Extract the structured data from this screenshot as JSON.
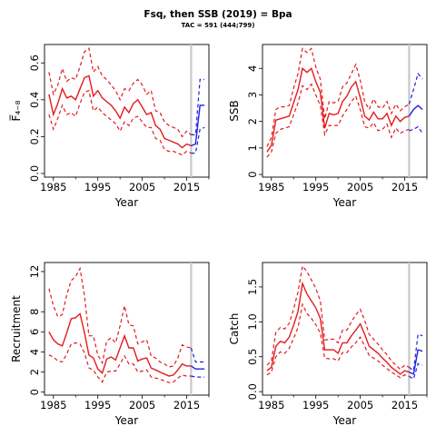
{
  "title": "Fsq, then SSB (2019) = Bpa",
  "subtitle": "TAC = 591 (444;799)",
  "colors": {
    "history": "#e41a1c",
    "projection": "#1f1fe0",
    "divider": "#c8c8c8"
  },
  "chart_data": [
    {
      "type": "line",
      "ylabel": "F̅₄₋₈",
      "xlabel": "Year",
      "xlim": [
        1983,
        2020
      ],
      "ylim": [
        -0.02,
        0.7
      ],
      "xticks": [
        1985,
        1995,
        2005,
        2015
      ],
      "yticks": [
        0.0,
        0.2,
        0.4,
        0.6
      ],
      "divider_year": 2016,
      "x": [
        1984,
        1985,
        1986,
        1987,
        1988,
        1989,
        1990,
        1991,
        1992,
        1993,
        1994,
        1995,
        1996,
        1997,
        1998,
        1999,
        2000,
        2001,
        2002,
        2003,
        2004,
        2005,
        2006,
        2007,
        2008,
        2009,
        2010,
        2011,
        2012,
        2013,
        2014,
        2015,
        2016
      ],
      "median": [
        0.43,
        0.32,
        0.38,
        0.46,
        0.41,
        0.42,
        0.4,
        0.46,
        0.52,
        0.53,
        0.42,
        0.45,
        0.41,
        0.39,
        0.37,
        0.34,
        0.3,
        0.36,
        0.33,
        0.38,
        0.4,
        0.36,
        0.32,
        0.33,
        0.26,
        0.24,
        0.19,
        0.18,
        0.17,
        0.16,
        0.14,
        0.16,
        0.15
      ],
      "lower": [
        0.32,
        0.24,
        0.3,
        0.37,
        0.32,
        0.33,
        0.31,
        0.38,
        0.44,
        0.45,
        0.34,
        0.36,
        0.33,
        0.31,
        0.29,
        0.27,
        0.23,
        0.28,
        0.26,
        0.3,
        0.31,
        0.28,
        0.25,
        0.25,
        0.19,
        0.18,
        0.13,
        0.12,
        0.12,
        0.11,
        0.1,
        0.12,
        0.11
      ],
      "upper": [
        0.55,
        0.43,
        0.48,
        0.57,
        0.5,
        0.52,
        0.51,
        0.58,
        0.66,
        0.68,
        0.55,
        0.58,
        0.53,
        0.51,
        0.48,
        0.45,
        0.4,
        0.46,
        0.45,
        0.49,
        0.51,
        0.48,
        0.43,
        0.45,
        0.34,
        0.33,
        0.28,
        0.26,
        0.25,
        0.24,
        0.2,
        0.23,
        0.21
      ],
      "proj_x": [
        2016,
        2017,
        2018,
        2019
      ],
      "proj_median": [
        0.15,
        0.16,
        0.37,
        0.37
      ],
      "proj_lower": [
        0.11,
        0.11,
        0.24,
        0.25
      ],
      "proj_upper": [
        0.21,
        0.21,
        0.51,
        0.51
      ]
    },
    {
      "type": "line",
      "ylabel": "SSB",
      "xlabel": "Year",
      "xlim": [
        1983,
        2020
      ],
      "ylim": [
        -0.1,
        4.9
      ],
      "xticks": [
        1985,
        1995,
        2005,
        2015
      ],
      "yticks": [
        0,
        1,
        2,
        3,
        4
      ],
      "divider_year": 2016,
      "x": [
        1984,
        1985,
        1986,
        1987,
        1988,
        1989,
        1990,
        1991,
        1992,
        1993,
        1994,
        1995,
        1996,
        1997,
        1998,
        1999,
        2000,
        2001,
        2002,
        2003,
        2004,
        2005,
        2006,
        2007,
        2008,
        2009,
        2010,
        2011,
        2012,
        2013,
        2014,
        2015,
        2016
      ],
      "median": [
        0.85,
        1.1,
        2.05,
        2.1,
        2.15,
        2.2,
        2.7,
        3.2,
        4.0,
        3.85,
        4.0,
        3.5,
        3.1,
        1.75,
        2.3,
        2.25,
        2.3,
        2.75,
        2.95,
        3.3,
        3.5,
        2.9,
        2.2,
        2.05,
        2.35,
        2.1,
        2.1,
        2.3,
        1.85,
        2.2,
        2.0,
        2.15,
        2.2
      ],
      "lower": [
        0.65,
        0.85,
        1.55,
        1.7,
        1.75,
        1.8,
        2.25,
        2.7,
        3.35,
        3.2,
        3.4,
        3.0,
        2.6,
        1.5,
        1.85,
        1.85,
        1.85,
        2.2,
        2.45,
        2.75,
        2.95,
        2.45,
        1.8,
        1.75,
        1.95,
        1.65,
        1.7,
        1.9,
        1.4,
        1.75,
        1.55,
        1.65,
        1.7
      ],
      "upper": [
        1.05,
        1.4,
        2.45,
        2.55,
        2.55,
        2.6,
        3.25,
        3.8,
        4.75,
        4.6,
        4.75,
        4.05,
        3.6,
        2.1,
        2.75,
        2.7,
        2.75,
        3.3,
        3.45,
        3.8,
        4.15,
        3.55,
        2.75,
        2.45,
        2.85,
        2.55,
        2.5,
        2.75,
        2.3,
        2.65,
        2.4,
        2.55,
        2.65
      ],
      "proj_x": [
        2016,
        2017,
        2018,
        2019
      ],
      "proj_median": [
        2.2,
        2.45,
        2.6,
        2.45
      ],
      "proj_lower": [
        1.65,
        1.7,
        1.8,
        1.55
      ],
      "proj_upper": [
        2.65,
        3.2,
        3.8,
        3.6
      ]
    },
    {
      "type": "line",
      "ylabel": "Recruitment",
      "xlabel": "Year",
      "xlim": [
        1983,
        2020
      ],
      "ylim": [
        -0.3,
        12.9
      ],
      "xticks": [
        1985,
        1995,
        2005,
        2015
      ],
      "yticks": [
        0,
        2,
        4,
        6,
        8,
        12
      ],
      "divider_year": 2016,
      "x": [
        1984,
        1985,
        1986,
        1987,
        1988,
        1989,
        1990,
        1991,
        1992,
        1993,
        1994,
        1995,
        1996,
        1997,
        1998,
        1999,
        2000,
        2001,
        2002,
        2003,
        2004,
        2005,
        2006,
        2007,
        2008,
        2009,
        2010,
        2011,
        2012,
        2013,
        2014,
        2015,
        2016
      ],
      "median": [
        6.0,
        5.2,
        4.8,
        4.6,
        5.9,
        7.3,
        7.4,
        7.8,
        5.9,
        3.7,
        3.4,
        2.3,
        1.9,
        3.3,
        3.5,
        3.2,
        4.4,
        5.6,
        4.4,
        4.4,
        3.1,
        3.3,
        3.4,
        2.4,
        2.2,
        2.0,
        1.8,
        1.6,
        1.7,
        2.2,
        2.8,
        2.6,
        2.6
      ],
      "lower": [
        3.7,
        3.5,
        3.1,
        3.0,
        3.8,
        4.8,
        4.9,
        4.8,
        3.9,
        2.4,
        2.2,
        1.5,
        1.0,
        2.0,
        2.1,
        2.1,
        2.8,
        3.6,
        2.8,
        2.8,
        2.0,
        2.1,
        2.2,
        1.5,
        1.4,
        1.3,
        1.1,
        0.95,
        1.0,
        1.4,
        1.7,
        1.6,
        1.6
      ],
      "upper": [
        10.3,
        8.6,
        7.5,
        7.7,
        9.7,
        11.1,
        11.5,
        12.3,
        9.6,
        5.6,
        5.6,
        3.7,
        2.9,
        5.1,
        5.4,
        4.9,
        6.6,
        8.6,
        6.7,
        6.6,
        4.8,
        5.0,
        5.2,
        3.6,
        3.4,
        3.0,
        2.8,
        2.5,
        2.6,
        3.4,
        4.7,
        4.5,
        4.4
      ],
      "proj_x": [
        2016,
        2017,
        2018,
        2019
      ],
      "proj_median": [
        2.6,
        2.3,
        2.3,
        2.3
      ],
      "proj_lower": [
        1.6,
        1.5,
        1.5,
        1.5
      ],
      "proj_upper": [
        4.4,
        3.0,
        3.0,
        3.0
      ]
    },
    {
      "type": "line",
      "ylabel": "Catch",
      "xlabel": "Year",
      "xlim": [
        1983,
        2020
      ],
      "ylim": [
        -0.05,
        1.85
      ],
      "xticks": [
        1985,
        1995,
        2005,
        2015
      ],
      "yticks": [
        0.0,
        0.5,
        1.0,
        1.5
      ],
      "divider_year": 2016,
      "x": [
        1984,
        1985,
        1986,
        1987,
        1988,
        1989,
        1990,
        1991,
        1992,
        1993,
        1994,
        1995,
        1996,
        1997,
        1998,
        1999,
        2000,
        2001,
        2002,
        2003,
        2004,
        2005,
        2006,
        2007,
        2008,
        2009,
        2010,
        2011,
        2012,
        2013,
        2014,
        2015,
        2016
      ],
      "median": [
        0.3,
        0.35,
        0.65,
        0.72,
        0.7,
        0.78,
        0.95,
        1.15,
        1.55,
        1.4,
        1.3,
        1.2,
        1.05,
        0.6,
        0.6,
        0.6,
        0.55,
        0.7,
        0.7,
        0.8,
        0.88,
        0.97,
        0.82,
        0.65,
        0.6,
        0.55,
        0.48,
        0.42,
        0.35,
        0.3,
        0.25,
        0.3,
        0.28
      ],
      "lower": [
        0.24,
        0.28,
        0.5,
        0.57,
        0.55,
        0.62,
        0.76,
        0.92,
        1.25,
        1.12,
        1.05,
        0.96,
        0.84,
        0.48,
        0.47,
        0.47,
        0.44,
        0.56,
        0.56,
        0.64,
        0.7,
        0.78,
        0.65,
        0.52,
        0.48,
        0.44,
        0.38,
        0.33,
        0.28,
        0.24,
        0.2,
        0.24,
        0.22
      ],
      "upper": [
        0.38,
        0.44,
        0.85,
        0.92,
        0.9,
        0.98,
        1.18,
        1.43,
        1.8,
        1.72,
        1.6,
        1.48,
        1.3,
        0.74,
        0.75,
        0.75,
        0.7,
        0.88,
        0.88,
        1.0,
        1.1,
        1.18,
        1.02,
        0.82,
        0.75,
        0.68,
        0.6,
        0.53,
        0.44,
        0.38,
        0.32,
        0.38,
        0.35
      ],
      "proj_x": [
        2016,
        2017,
        2018,
        2019
      ],
      "proj_median": [
        0.28,
        0.25,
        0.6,
        0.58
      ],
      "proj_lower": [
        0.22,
        0.18,
        0.4,
        0.38
      ],
      "proj_upper": [
        0.35,
        0.3,
        0.82,
        0.8
      ]
    }
  ]
}
